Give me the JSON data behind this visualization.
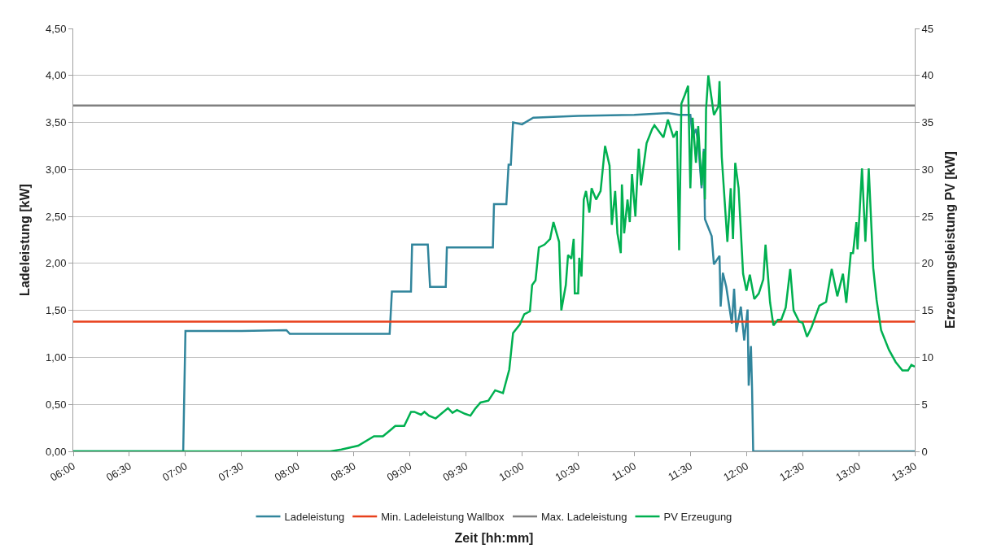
{
  "chart_data": {
    "type": "line",
    "xlabel": "Zeit [hh:mm]",
    "ylabel": "Ladeleistung [kW]",
    "y2label": "Erzeugungsleistung PV [kW]",
    "xlim": [
      6,
      13.5
    ],
    "xticks": [
      {
        "value": 6,
        "label": "06:00"
      },
      {
        "value": 6.5,
        "label": "06:30"
      },
      {
        "value": 7,
        "label": "07:00"
      },
      {
        "value": 7.5,
        "label": "07:30"
      },
      {
        "value": 8,
        "label": "08:00"
      },
      {
        "value": 8.5,
        "label": "08:30"
      },
      {
        "value": 9,
        "label": "09:00"
      },
      {
        "value": 9.5,
        "label": "09:30"
      },
      {
        "value": 10,
        "label": "10:00"
      },
      {
        "value": 10.5,
        "label": "10:30"
      },
      {
        "value": 11,
        "label": "11:00"
      },
      {
        "value": 11.5,
        "label": "11:30"
      },
      {
        "value": 12,
        "label": "12:00"
      },
      {
        "value": 12.5,
        "label": "12:30"
      },
      {
        "value": 13,
        "label": "13:00"
      },
      {
        "value": 13.5,
        "label": "13:30"
      }
    ],
    "ylim": [
      0,
      4.5
    ],
    "yticks": [
      {
        "value": 0,
        "label": "0,00"
      },
      {
        "value": 0.5,
        "label": "0,50"
      },
      {
        "value": 1,
        "label": "1,00"
      },
      {
        "value": 1.5,
        "label": "1,50"
      },
      {
        "value": 2,
        "label": "2,00"
      },
      {
        "value": 2.5,
        "label": "2,50"
      },
      {
        "value": 3,
        "label": "3,00"
      },
      {
        "value": 3.5,
        "label": "3,50"
      },
      {
        "value": 4,
        "label": "4,00"
      },
      {
        "value": 4.5,
        "label": "4,50"
      }
    ],
    "y2lim": [
      0,
      45
    ],
    "y2ticks": [
      0,
      5,
      10,
      15,
      20,
      25,
      30,
      35,
      40,
      45
    ],
    "grid": "y",
    "legend": "bottom",
    "marker": "none",
    "line_style": "solid",
    "ref_lines": [
      {
        "axis": "y",
        "value": 1.38,
        "label": "Min. Ladeleistung Wallbox",
        "color": "#e8401c"
      },
      {
        "axis": "y",
        "value": 3.68,
        "label": "Max. Ladeleistung",
        "color": "#808080"
      }
    ],
    "series": [
      {
        "name": "Ladeleistung",
        "color": "#31859c",
        "x": [
          6,
          6.98,
          7,
          7.5,
          7.9,
          7.93,
          8.5,
          8.82,
          8.84,
          9.01,
          9.02,
          9.16,
          9.18,
          9.32,
          9.33,
          9.74,
          9.75,
          9.86,
          9.88,
          9.9,
          9.92,
          10,
          10.1,
          10.5,
          11,
          11.3,
          11.4,
          11.5,
          11.52,
          11.55,
          11.57,
          11.6,
          11.62,
          11.63,
          11.69,
          11.71,
          11.76,
          11.77,
          11.79,
          11.82,
          11.87,
          11.89,
          11.91,
          11.95,
          11.98,
          12.01,
          12.02,
          12.04,
          12.05,
          12.06,
          13.5
        ],
        "values": [
          0,
          0,
          1.28,
          1.28,
          1.29,
          1.25,
          1.25,
          1.25,
          1.7,
          1.7,
          2.2,
          2.2,
          1.75,
          1.75,
          2.17,
          2.17,
          2.63,
          2.63,
          3.05,
          3.05,
          3.5,
          3.48,
          3.55,
          3.57,
          3.58,
          3.6,
          3.58,
          3.58,
          3.35,
          3.43,
          3.28,
          2.8,
          3.22,
          2.47,
          2.29,
          1.99,
          2.08,
          1.54,
          1.9,
          1.75,
          1.36,
          1.73,
          1.27,
          1.54,
          1.18,
          1.51,
          0.7,
          1.12,
          0.67,
          0,
          0
        ]
      },
      {
        "name": "PV Erzeugung",
        "color": "#00b050",
        "axis": "y2",
        "x": [
          6,
          8.29,
          8.39,
          8.54,
          8.68,
          8.76,
          8.83,
          8.87,
          8.95,
          9.01,
          9.04,
          9.1,
          9.13,
          9.17,
          9.23,
          9.28,
          9.34,
          9.38,
          9.42,
          9.49,
          9.54,
          9.58,
          9.63,
          9.7,
          9.76,
          9.83,
          9.886,
          9.92,
          9.98,
          10.02,
          10.07,
          10.09,
          10.12,
          10.15,
          10.2,
          10.25,
          10.28,
          10.33,
          10.35,
          10.39,
          10.41,
          10.44,
          10.46,
          10.47,
          10.5,
          10.51,
          10.53,
          10.55,
          10.57,
          10.6,
          10.62,
          10.66,
          10.7,
          10.74,
          10.78,
          10.8,
          10.83,
          10.85,
          10.88,
          10.89,
          10.91,
          10.94,
          10.96,
          10.98,
          11.01,
          11.04,
          11.06,
          11.11,
          11.16,
          11.18,
          11.26,
          11.3,
          11.35,
          11.38,
          11.4,
          11.42,
          11.45,
          11.48,
          11.5,
          11.52,
          11.55,
          11.57,
          11.6,
          11.62,
          11.63,
          11.64,
          11.66,
          11.71,
          11.75,
          11.76,
          11.78,
          11.83,
          11.86,
          11.88,
          11.9,
          11.93,
          11.97,
          12,
          12.03,
          12.07,
          12.11,
          12.15,
          12.17,
          12.21,
          12.24,
          12.28,
          12.31,
          12.35,
          12.39,
          12.42,
          12.47,
          12.5,
          12.54,
          12.58,
          12.65,
          12.71,
          12.76,
          12.81,
          12.86,
          12.89,
          12.93,
          12.95,
          12.98,
          12.99,
          13.03,
          13.06,
          13.09,
          13.13,
          13.16,
          13.2,
          13.27,
          13.33,
          13.39,
          13.44,
          13.47,
          13.5
        ],
        "values": [
          0,
          0,
          0.2,
          0.6,
          1.6,
          1.6,
          2.3,
          2.7,
          2.7,
          4.2,
          4.2,
          3.9,
          4.2,
          3.8,
          3.5,
          4,
          4.6,
          4.1,
          4.4,
          4,
          3.8,
          4.5,
          5.2,
          5.4,
          6.5,
          6.2,
          8.7,
          12.6,
          13.5,
          14.6,
          14.9,
          17.7,
          18.2,
          21.7,
          22,
          22.6,
          24.4,
          22.3,
          15,
          17.7,
          20.9,
          20.5,
          22.6,
          16.8,
          16.8,
          20.6,
          18.6,
          26.8,
          27.7,
          25.4,
          28,
          26.8,
          27.7,
          32.5,
          30.4,
          24.1,
          27.7,
          23.2,
          21.1,
          28.4,
          23.2,
          26.8,
          24.4,
          29.5,
          25,
          32.2,
          28.3,
          32.8,
          34.3,
          34.7,
          33.4,
          35.3,
          33.4,
          34.1,
          21.4,
          37,
          37.9,
          38.9,
          28,
          35.5,
          30.7,
          34.6,
          28.3,
          31.9,
          26.8,
          36.4,
          40,
          35.8,
          36.7,
          39.4,
          31.3,
          22.3,
          28,
          22.6,
          30.7,
          28,
          18.9,
          17.1,
          18.8,
          16.2,
          16.8,
          18.3,
          22,
          15.9,
          13.4,
          14,
          14,
          15.3,
          19.4,
          15,
          13.8,
          13.7,
          12.2,
          13.2,
          15.5,
          15.9,
          19.4,
          16.5,
          18.9,
          15.8,
          21.1,
          21.1,
          24.4,
          21.5,
          30.1,
          22.3,
          30.1,
          19.5,
          16.1,
          12.9,
          10.8,
          9.5,
          8.6,
          8.6,
          9.2,
          9
        ]
      }
    ]
  }
}
